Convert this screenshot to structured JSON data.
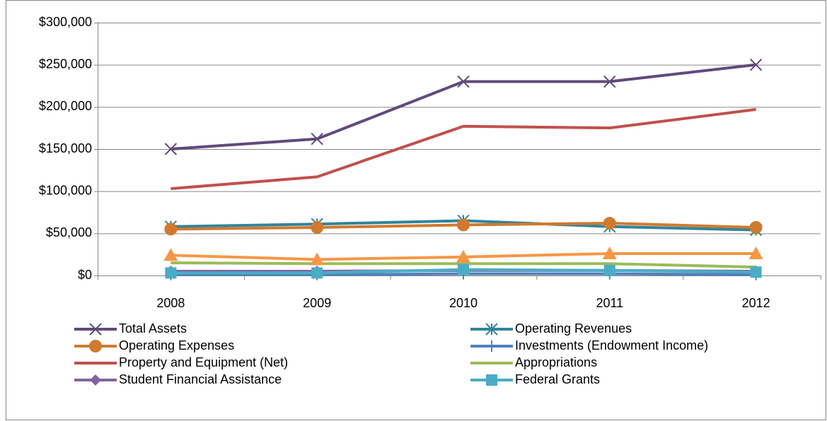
{
  "chart_data": {
    "type": "line",
    "categories": [
      "2008",
      "2009",
      "2010",
      "2011",
      "2012"
    ],
    "ylim": [
      0,
      300000
    ],
    "yticks": [
      {
        "value": 0,
        "label": "$0"
      },
      {
        "value": 50000,
        "label": "$50,000"
      },
      {
        "value": 100000,
        "label": "$100,000"
      },
      {
        "value": 150000,
        "label": "$150,000"
      },
      {
        "value": 200000,
        "label": "$200,000"
      },
      {
        "value": 250000,
        "label": "$250,000"
      },
      {
        "value": 300000,
        "label": "$300,000"
      }
    ],
    "grid": true,
    "series": [
      {
        "name": "Total Assets",
        "color": "#604a7b",
        "marker": "x",
        "values": [
          150000,
          162000,
          230000,
          230000,
          250000
        ]
      },
      {
        "name": "Operating Revenues",
        "color": "#31849b",
        "marker": "asterisk",
        "values": [
          58000,
          61000,
          65000,
          58000,
          54000
        ]
      },
      {
        "name": "Operating Expenses",
        "color": "#d07a30",
        "marker": "circle",
        "values": [
          55000,
          57000,
          60000,
          62000,
          57000
        ]
      },
      {
        "name": "Investments (Endowment Income)",
        "color": "#4f81bd",
        "marker": "plus",
        "values": [
          1000,
          1000,
          2000,
          2000,
          1000
        ]
      },
      {
        "name": "Property and Equipment (Net)",
        "color": "#c0504d",
        "marker": "none",
        "values": [
          103000,
          117000,
          177000,
          175000,
          197000
        ]
      },
      {
        "name": "Appropriations",
        "color": "#9bbb59",
        "marker": "none",
        "values": [
          15000,
          14000,
          14000,
          14000,
          10000
        ]
      },
      {
        "name": "Student Financial Assistance",
        "color": "#8064a2",
        "marker": "diamond",
        "values": [
          5000,
          5000,
          6000,
          6000,
          5000
        ]
      },
      {
        "name": "Federal Grants",
        "color": "#4bacc6",
        "marker": "square",
        "values": [
          3000,
          3000,
          7000,
          6000,
          4000
        ]
      },
      {
        "color": "#f79646",
        "marker": "triangle",
        "values": [
          24000,
          19000,
          22000,
          26000,
          26000
        ]
      }
    ]
  }
}
